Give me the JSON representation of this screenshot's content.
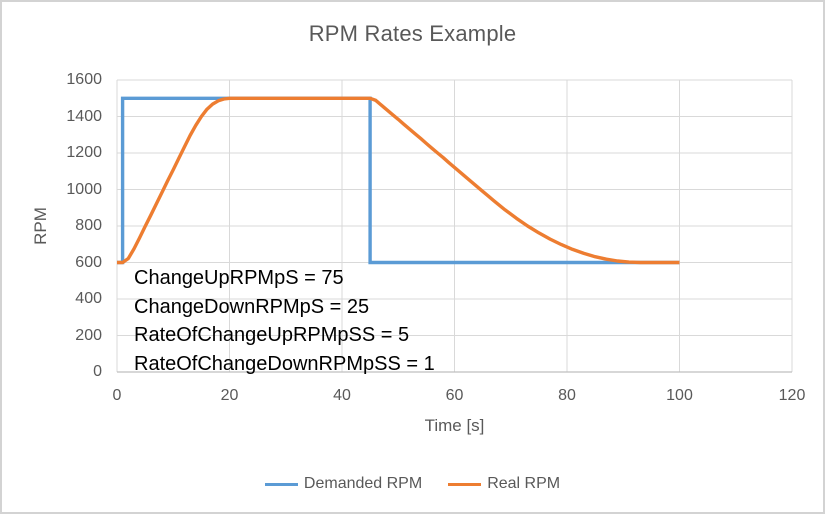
{
  "chart_data": {
    "type": "line",
    "title": "RPM Rates Example",
    "xlabel": "Time [s]",
    "ylabel": "RPM",
    "xlim": [
      0,
      120
    ],
    "ylim": [
      0,
      1600
    ],
    "x_ticks": [
      0,
      20,
      40,
      60,
      80,
      100,
      120
    ],
    "y_ticks": [
      0,
      200,
      400,
      600,
      800,
      1000,
      1200,
      1400,
      1600
    ],
    "grid": true,
    "legend_position": "bottom",
    "annotations": [
      "ChangeUpRPMpS = 75",
      "ChangeDownRPMpS = 25",
      "RateOfChangeUpRPMpSS = 5",
      "RateOfChangeDownRPMpSS = 1"
    ],
    "parameters": {
      "ChangeUpRPMpS": 75,
      "ChangeDownRPMpS": 25,
      "RateOfChangeUpRPMpSS": 5,
      "RateOfChangeDownRPMpSS": 1
    },
    "series": [
      {
        "name": "Demanded RPM",
        "color": "#5B9BD5",
        "points": [
          [
            0,
            600
          ],
          [
            1,
            600
          ],
          [
            1,
            1500
          ],
          [
            45,
            1500
          ],
          [
            45,
            600
          ],
          [
            100,
            600
          ]
        ]
      },
      {
        "name": "Real RPM",
        "color": "#ED7D31",
        "points": [
          [
            0,
            600
          ],
          [
            1,
            600
          ],
          [
            2,
            622
          ],
          [
            3,
            674
          ],
          [
            4,
            734
          ],
          [
            5,
            797
          ],
          [
            6,
            859
          ],
          [
            7,
            922
          ],
          [
            8,
            984
          ],
          [
            9,
            1047
          ],
          [
            10,
            1109
          ],
          [
            11,
            1172
          ],
          [
            12,
            1234
          ],
          [
            13,
            1296
          ],
          [
            14,
            1352
          ],
          [
            15,
            1400
          ],
          [
            16,
            1440
          ],
          [
            17,
            1468
          ],
          [
            18,
            1486
          ],
          [
            19,
            1496
          ],
          [
            20,
            1500
          ],
          [
            45,
            1500
          ],
          [
            46,
            1488
          ],
          [
            47,
            1462
          ],
          [
            48,
            1436
          ],
          [
            49,
            1410
          ],
          [
            50,
            1384
          ],
          [
            51,
            1357
          ],
          [
            52,
            1331
          ],
          [
            53,
            1305
          ],
          [
            54,
            1279
          ],
          [
            55,
            1252
          ],
          [
            56,
            1226
          ],
          [
            57,
            1200
          ],
          [
            58,
            1174
          ],
          [
            59,
            1147
          ],
          [
            60,
            1121
          ],
          [
            61,
            1095
          ],
          [
            62,
            1068
          ],
          [
            63,
            1042
          ],
          [
            64,
            1016
          ],
          [
            65,
            990
          ],
          [
            66,
            964
          ],
          [
            67,
            938
          ],
          [
            69,
            888
          ],
          [
            71,
            842
          ],
          [
            73,
            800
          ],
          [
            75,
            762
          ],
          [
            77,
            728
          ],
          [
            79,
            698
          ],
          [
            81,
            672
          ],
          [
            83,
            650
          ],
          [
            85,
            632
          ],
          [
            87,
            618
          ],
          [
            89,
            608
          ],
          [
            91,
            602
          ],
          [
            93,
            600
          ],
          [
            100,
            600
          ]
        ]
      }
    ]
  },
  "style_colors": {
    "grid": "#D9D9D9",
    "axis_line": "#BFBFBF",
    "text_gray": "#595959",
    "annotation_text": "#000000",
    "chart_border": "#D3D3D3",
    "background": "#FFFFFF",
    "series_blue": "#5B9BD5",
    "series_orange": "#ED7D31"
  }
}
